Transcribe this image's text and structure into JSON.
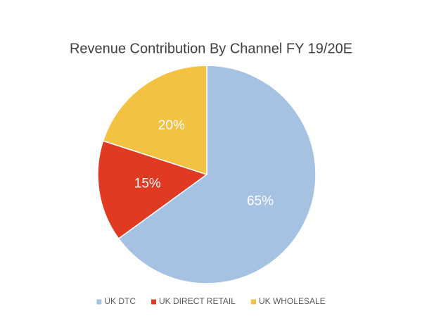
{
  "chart_data": {
    "type": "pie",
    "title": "Revenue Contribution By Channel FY 19/20E",
    "categories": [
      "UK DTC",
      "UK DIRECT RETAIL",
      "UK WHOLESALE"
    ],
    "values": [
      65,
      15,
      20
    ],
    "value_labels": [
      "65%",
      "15%",
      "20%"
    ],
    "colors": [
      "#a5c2e3",
      "#e03a22",
      "#f4c242"
    ],
    "legend": "bottom"
  }
}
